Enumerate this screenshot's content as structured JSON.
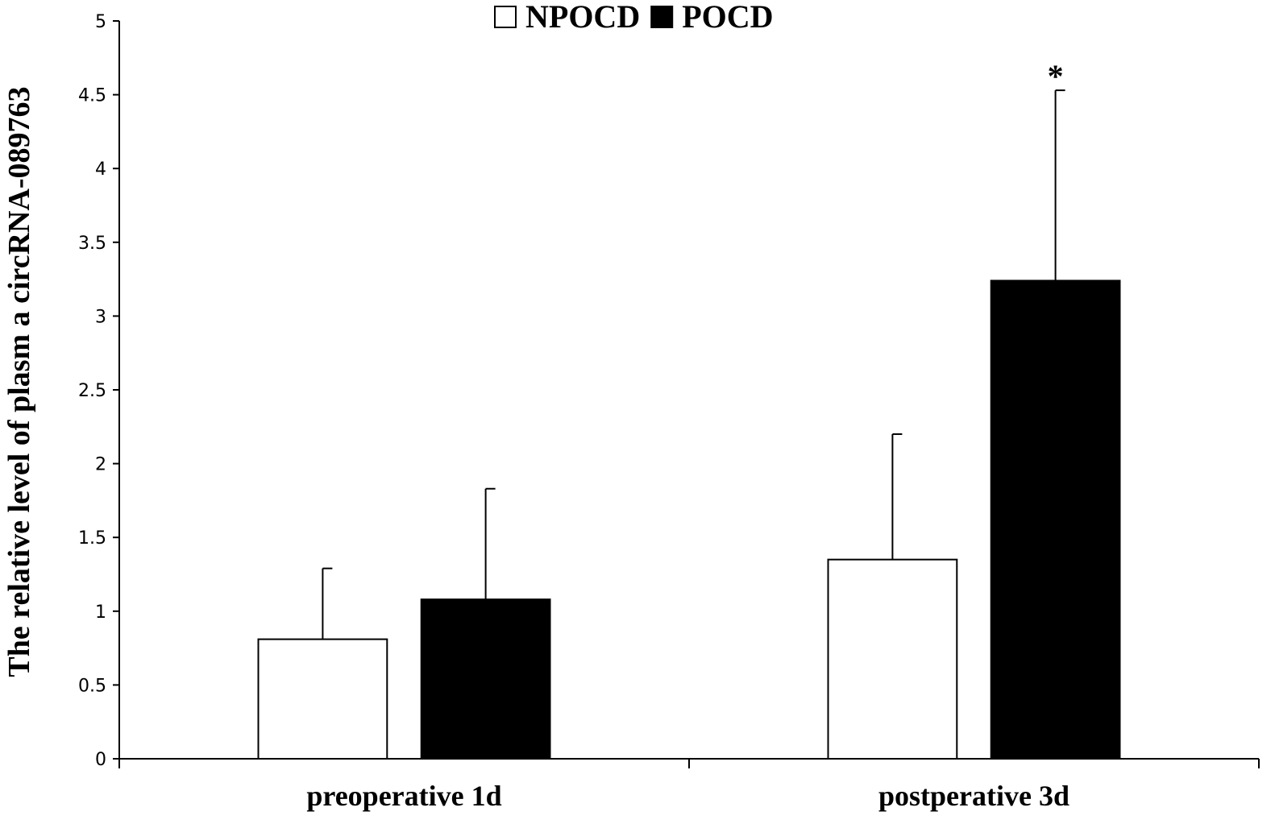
{
  "chart_data": {
    "type": "bar",
    "categories": [
      "preoperative 1d",
      "postperative 3d"
    ],
    "series": [
      {
        "name": "NPOCD",
        "values": [
          0.81,
          1.35
        ],
        "errors": [
          0.48,
          0.85
        ],
        "color": "#ffffff"
      },
      {
        "name": "POCD",
        "values": [
          1.08,
          3.24
        ],
        "errors": [
          0.75,
          1.29
        ],
        "color": "#000000"
      }
    ],
    "ylabel": "The relative level of plasm a circRNA-089763",
    "ylim": [
      0,
      5
    ],
    "yticks": [
      {
        "value": 0,
        "label": "0"
      },
      {
        "value": 0.5,
        "label": "0.5"
      },
      {
        "value": 1,
        "label": "1"
      },
      {
        "value": 1.5,
        "label": "1.5"
      },
      {
        "value": 2,
        "label": "2"
      },
      {
        "value": 2.5,
        "label": "2.5"
      },
      {
        "value": 3,
        "label": "3"
      },
      {
        "value": 3.5,
        "label": "3.5"
      },
      {
        "value": 4,
        "label": "4"
      },
      {
        "value": 4.5,
        "label": "4.5"
      },
      {
        "value": 5,
        "label": "5"
      }
    ],
    "legend_position": "top-center",
    "grid": false,
    "annotations": [
      {
        "text": "*",
        "category_index": 1,
        "series_index": 1
      }
    ]
  }
}
